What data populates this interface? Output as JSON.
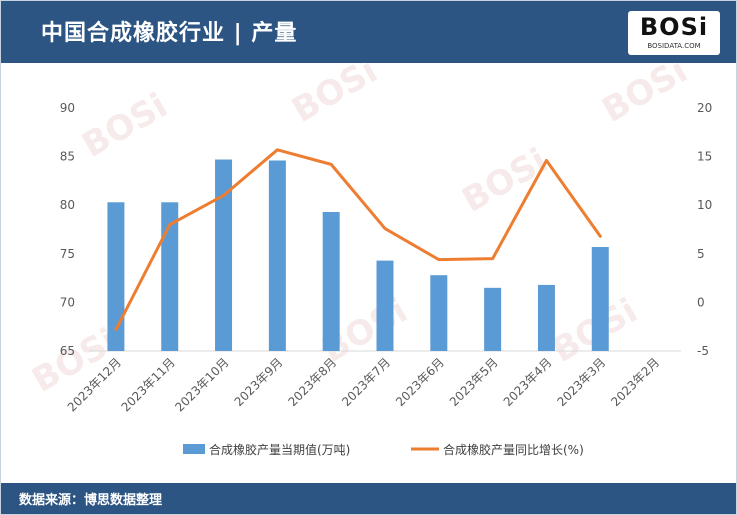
{
  "header": {
    "title": "中国合成橡胶行业 | 产量"
  },
  "logo": {
    "text": "BOSi",
    "subtext": "BOSIDATA.COM"
  },
  "footer": {
    "source": "数据来源：博思数据整理"
  },
  "colors": {
    "header_bg": "#2c5583",
    "bar": "#5b9bd5",
    "line": "#ed7d31"
  },
  "chart_data": {
    "type": "bar+line",
    "title": "中国合成橡胶行业 | 产量",
    "categories": [
      "2023年12月",
      "2023年11月",
      "2023年10月",
      "2023年9月",
      "2023年8月",
      "2023年7月",
      "2023年6月",
      "2023年5月",
      "2023年4月",
      "2023年3月",
      "2023年2月"
    ],
    "series": [
      {
        "name": "合成橡胶产量当期值(万吨)",
        "type": "bar",
        "axis": "left",
        "values": [
          80.3,
          80.3,
          84.7,
          84.6,
          79.3,
          74.3,
          72.8,
          71.5,
          71.8,
          75.7,
          null
        ]
      },
      {
        "name": "合成橡胶产量同比增长(%)",
        "type": "line",
        "axis": "right",
        "values": [
          -2.8,
          8.0,
          11.0,
          15.7,
          14.2,
          7.6,
          4.4,
          4.5,
          14.6,
          6.8,
          null
        ]
      }
    ],
    "y_left": {
      "lim": [
        65,
        90
      ],
      "ticks": [
        65,
        70,
        75,
        80,
        85,
        90
      ]
    },
    "y_right": {
      "lim": [
        -5,
        20
      ],
      "ticks": [
        -5,
        0,
        5,
        10,
        15,
        20
      ]
    },
    "legend": "bottom",
    "grid": false
  }
}
